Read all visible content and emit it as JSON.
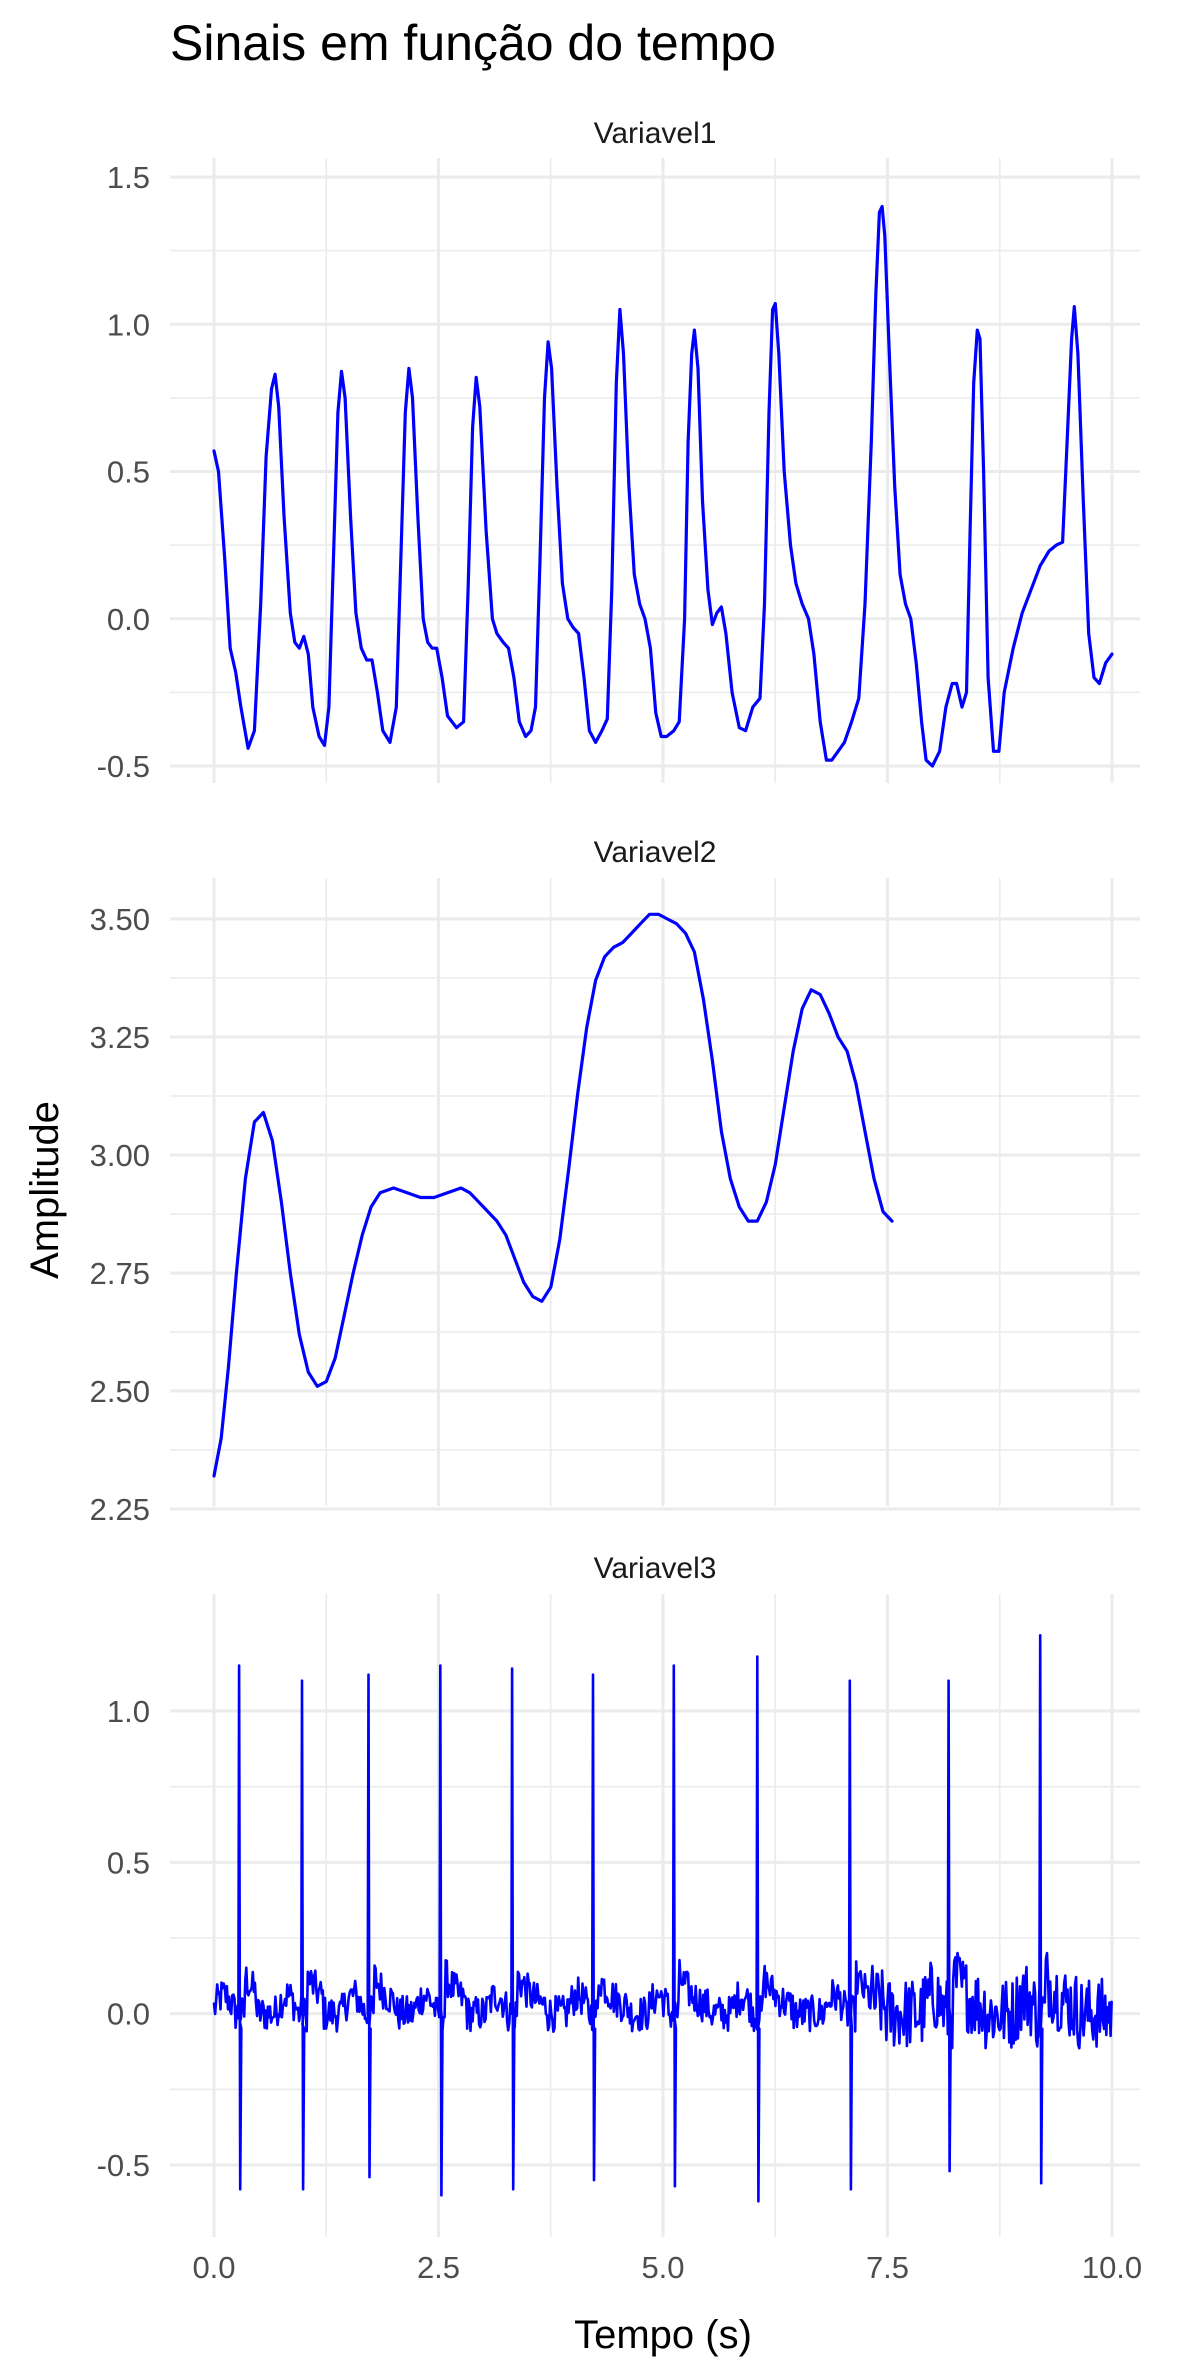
{
  "title": "Sinais em função do tempo",
  "xlabel": "Tempo (s)",
  "ylabel": "Amplitude",
  "x_ticks": [
    "0.0",
    "2.5",
    "5.0",
    "7.5",
    "10.0"
  ],
  "chart_data": {
    "type": "line",
    "title": "Sinais em função do tempo",
    "xlabel": "Tempo (s)",
    "ylabel": "Amplitude",
    "xlim": [
      0,
      10
    ],
    "x_ticks": [
      0,
      2.5,
      5,
      7.5,
      10
    ],
    "grid": true,
    "line_color": "#0000ff",
    "facets": [
      {
        "name": "Variavel1",
        "ylim": [
          -0.5,
          1.5
        ],
        "y_ticks": [
          -0.5,
          0,
          0.5,
          1.0,
          1.5
        ],
        "y_tick_labels": [
          "-0.5",
          "0.0",
          "0.5",
          "1.0",
          "1.5"
        ],
        "points": [
          [
            0,
            0.57
          ],
          [
            0.05,
            0.5
          ],
          [
            0.12,
            0.2
          ],
          [
            0.18,
            -0.1
          ],
          [
            0.24,
            -0.18
          ],
          [
            0.3,
            -0.3
          ],
          [
            0.38,
            -0.44
          ],
          [
            0.45,
            -0.38
          ],
          [
            0.52,
            0.05
          ],
          [
            0.58,
            0.55
          ],
          [
            0.64,
            0.78
          ],
          [
            0.68,
            0.83
          ],
          [
            0.72,
            0.72
          ],
          [
            0.78,
            0.35
          ],
          [
            0.85,
            0.02
          ],
          [
            0.9,
            -0.08
          ],
          [
            0.95,
            -0.1
          ],
          [
            1.0,
            -0.06
          ],
          [
            1.05,
            -0.12
          ],
          [
            1.1,
            -0.3
          ],
          [
            1.17,
            -0.4
          ],
          [
            1.23,
            -0.43
          ],
          [
            1.28,
            -0.3
          ],
          [
            1.33,
            0.2
          ],
          [
            1.38,
            0.7
          ],
          [
            1.42,
            0.84
          ],
          [
            1.46,
            0.75
          ],
          [
            1.52,
            0.35
          ],
          [
            1.58,
            0.02
          ],
          [
            1.64,
            -0.1
          ],
          [
            1.7,
            -0.14
          ],
          [
            1.76,
            -0.14
          ],
          [
            1.82,
            -0.25
          ],
          [
            1.88,
            -0.38
          ],
          [
            1.96,
            -0.42
          ],
          [
            2.03,
            -0.3
          ],
          [
            2.08,
            0.2
          ],
          [
            2.13,
            0.7
          ],
          [
            2.17,
            0.85
          ],
          [
            2.21,
            0.75
          ],
          [
            2.27,
            0.35
          ],
          [
            2.33,
            0.0
          ],
          [
            2.38,
            -0.08
          ],
          [
            2.43,
            -0.1
          ],
          [
            2.48,
            -0.1
          ],
          [
            2.54,
            -0.2
          ],
          [
            2.6,
            -0.33
          ],
          [
            2.7,
            -0.37
          ],
          [
            2.78,
            -0.35
          ],
          [
            2.83,
            0.1
          ],
          [
            2.88,
            0.65
          ],
          [
            2.92,
            0.82
          ],
          [
            2.96,
            0.72
          ],
          [
            3.03,
            0.3
          ],
          [
            3.1,
            0.0
          ],
          [
            3.15,
            -0.05
          ],
          [
            3.22,
            -0.08
          ],
          [
            3.28,
            -0.1
          ],
          [
            3.34,
            -0.2
          ],
          [
            3.4,
            -0.35
          ],
          [
            3.47,
            -0.4
          ],
          [
            3.53,
            -0.38
          ],
          [
            3.58,
            -0.3
          ],
          [
            3.63,
            0.2
          ],
          [
            3.68,
            0.75
          ],
          [
            3.72,
            0.94
          ],
          [
            3.76,
            0.85
          ],
          [
            3.82,
            0.45
          ],
          [
            3.88,
            0.12
          ],
          [
            3.94,
            0.0
          ],
          [
            4.0,
            -0.03
          ],
          [
            4.06,
            -0.05
          ],
          [
            4.12,
            -0.2
          ],
          [
            4.18,
            -0.38
          ],
          [
            4.25,
            -0.42
          ],
          [
            4.32,
            -0.38
          ],
          [
            4.38,
            -0.34
          ],
          [
            4.43,
            0.1
          ],
          [
            4.48,
            0.8
          ],
          [
            4.52,
            1.05
          ],
          [
            4.56,
            0.9
          ],
          [
            4.62,
            0.45
          ],
          [
            4.68,
            0.15
          ],
          [
            4.74,
            0.05
          ],
          [
            4.8,
            0.0
          ],
          [
            4.86,
            -0.1
          ],
          [
            4.92,
            -0.32
          ],
          [
            4.98,
            -0.4
          ],
          [
            5.04,
            -0.4
          ],
          [
            5.12,
            -0.38
          ],
          [
            5.18,
            -0.35
          ],
          [
            5.24,
            0.0
          ],
          [
            5.28,
            0.6
          ],
          [
            5.32,
            0.9
          ],
          [
            5.35,
            0.98
          ],
          [
            5.39,
            0.85
          ],
          [
            5.44,
            0.4
          ],
          [
            5.5,
            0.1
          ],
          [
            5.55,
            -0.02
          ],
          [
            5.6,
            0.02
          ],
          [
            5.65,
            0.04
          ],
          [
            5.7,
            -0.05
          ],
          [
            5.77,
            -0.25
          ],
          [
            5.85,
            -0.37
          ],
          [
            5.92,
            -0.38
          ],
          [
            6.0,
            -0.3
          ],
          [
            6.08,
            -0.27
          ],
          [
            6.13,
            0.05
          ],
          [
            6.18,
            0.7
          ],
          [
            6.22,
            1.05
          ],
          [
            6.25,
            1.07
          ],
          [
            6.29,
            0.9
          ],
          [
            6.35,
            0.5
          ],
          [
            6.42,
            0.25
          ],
          [
            6.48,
            0.12
          ],
          [
            6.55,
            0.05
          ],
          [
            6.62,
            0.0
          ],
          [
            6.68,
            -0.12
          ],
          [
            6.75,
            -0.35
          ],
          [
            6.82,
            -0.48
          ],
          [
            6.88,
            -0.48
          ],
          [
            6.95,
            -0.45
          ],
          [
            7.02,
            -0.42
          ],
          [
            7.1,
            -0.35
          ],
          [
            7.18,
            -0.27
          ],
          [
            7.25,
            0.05
          ],
          [
            7.32,
            0.6
          ],
          [
            7.37,
            1.1
          ],
          [
            7.41,
            1.38
          ],
          [
            7.44,
            1.4
          ],
          [
            7.47,
            1.3
          ],
          [
            7.52,
            0.9
          ],
          [
            7.58,
            0.45
          ],
          [
            7.64,
            0.15
          ],
          [
            7.7,
            0.05
          ],
          [
            7.76,
            0.0
          ],
          [
            7.82,
            -0.15
          ],
          [
            7.88,
            -0.35
          ],
          [
            7.93,
            -0.48
          ],
          [
            8.0,
            -0.5
          ],
          [
            8.08,
            -0.45
          ],
          [
            8.15,
            -0.3
          ],
          [
            8.22,
            -0.22
          ],
          [
            8.27,
            -0.22
          ],
          [
            8.33,
            -0.3
          ],
          [
            8.38,
            -0.25
          ],
          [
            8.42,
            0.3
          ],
          [
            8.46,
            0.8
          ],
          [
            8.5,
            0.98
          ],
          [
            8.53,
            0.95
          ],
          [
            8.57,
            0.5
          ],
          [
            8.62,
            -0.2
          ],
          [
            8.68,
            -0.45
          ],
          [
            8.74,
            -0.45
          ],
          [
            8.8,
            -0.25
          ],
          [
            8.9,
            -0.1
          ],
          [
            9.0,
            0.02
          ],
          [
            9.1,
            0.1
          ],
          [
            9.2,
            0.18
          ],
          [
            9.3,
            0.23
          ],
          [
            9.38,
            0.25
          ],
          [
            9.45,
            0.26
          ],
          [
            9.5,
            0.6
          ],
          [
            9.55,
            0.95
          ],
          [
            9.58,
            1.06
          ],
          [
            9.62,
            0.9
          ],
          [
            9.68,
            0.4
          ],
          [
            9.74,
            -0.05
          ],
          [
            9.8,
            -0.2
          ],
          [
            9.86,
            -0.22
          ],
          [
            9.93,
            -0.15
          ],
          [
            10,
            -0.12
          ]
        ]
      },
      {
        "name": "Variavel2",
        "ylim": [
          2.25,
          3.5
        ],
        "y_ticks": [
          2.25,
          2.5,
          2.75,
          3.0,
          3.25,
          3.5
        ],
        "y_tick_labels": [
          "2.25",
          "2.50",
          "2.75",
          "3.00",
          "3.25",
          "3.50"
        ],
        "points": [
          [
            0,
            2.32
          ],
          [
            0.08,
            2.4
          ],
          [
            0.16,
            2.55
          ],
          [
            0.25,
            2.75
          ],
          [
            0.35,
            2.95
          ],
          [
            0.45,
            3.07
          ],
          [
            0.55,
            3.09
          ],
          [
            0.65,
            3.03
          ],
          [
            0.75,
            2.9
          ],
          [
            0.85,
            2.75
          ],
          [
            0.95,
            2.62
          ],
          [
            1.05,
            2.54
          ],
          [
            1.15,
            2.51
          ],
          [
            1.25,
            2.52
          ],
          [
            1.35,
            2.57
          ],
          [
            1.45,
            2.66
          ],
          [
            1.55,
            2.75
          ],
          [
            1.65,
            2.83
          ],
          [
            1.75,
            2.89
          ],
          [
            1.85,
            2.92
          ],
          [
            2.0,
            2.93
          ],
          [
            2.15,
            2.92
          ],
          [
            2.3,
            2.91
          ],
          [
            2.45,
            2.91
          ],
          [
            2.6,
            2.92
          ],
          [
            2.75,
            2.93
          ],
          [
            2.85,
            2.92
          ],
          [
            2.95,
            2.9
          ],
          [
            3.05,
            2.88
          ],
          [
            3.15,
            2.86
          ],
          [
            3.25,
            2.83
          ],
          [
            3.35,
            2.78
          ],
          [
            3.45,
            2.73
          ],
          [
            3.55,
            2.7
          ],
          [
            3.65,
            2.69
          ],
          [
            3.75,
            2.72
          ],
          [
            3.85,
            2.82
          ],
          [
            3.95,
            2.97
          ],
          [
            4.05,
            3.13
          ],
          [
            4.15,
            3.27
          ],
          [
            4.25,
            3.37
          ],
          [
            4.35,
            3.42
          ],
          [
            4.45,
            3.44
          ],
          [
            4.55,
            3.45
          ],
          [
            4.65,
            3.47
          ],
          [
            4.75,
            3.49
          ],
          [
            4.85,
            3.51
          ],
          [
            4.95,
            3.51
          ],
          [
            5.05,
            3.5
          ],
          [
            5.15,
            3.49
          ],
          [
            5.25,
            3.47
          ],
          [
            5.35,
            3.43
          ],
          [
            5.45,
            3.33
          ],
          [
            5.55,
            3.2
          ],
          [
            5.65,
            3.05
          ],
          [
            5.75,
            2.95
          ],
          [
            5.85,
            2.89
          ],
          [
            5.95,
            2.86
          ],
          [
            6.05,
            2.86
          ],
          [
            6.15,
            2.9
          ],
          [
            6.25,
            2.98
          ],
          [
            6.35,
            3.1
          ],
          [
            6.45,
            3.22
          ],
          [
            6.55,
            3.31
          ],
          [
            6.65,
            3.35
          ],
          [
            6.75,
            3.34
          ],
          [
            6.85,
            3.3
          ],
          [
            6.95,
            3.25
          ],
          [
            7.05,
            3.22
          ],
          [
            7.15,
            3.15
          ],
          [
            7.25,
            3.05
          ],
          [
            7.35,
            2.95
          ],
          [
            7.45,
            2.88
          ],
          [
            7.55,
            2.86
          ]
        ]
      },
      {
        "name": "Variavel3",
        "ylim": [
          -0.5,
          1.0
        ],
        "y_ticks": [
          -0.5,
          0,
          0.5,
          1.0
        ],
        "y_tick_labels": [
          "-0.5",
          "0.0",
          "0.5",
          "1.0"
        ],
        "spike_times": [
          0.28,
          0.98,
          1.72,
          2.52,
          3.32,
          4.22,
          5.12,
          6.05,
          7.08,
          8.18,
          9.2
        ],
        "spike_peaks": [
          1.15,
          1.1,
          1.12,
          1.15,
          1.14,
          1.12,
          1.15,
          1.18,
          1.1,
          1.1,
          1.25
        ],
        "spike_troughs": [
          -0.58,
          -0.58,
          -0.54,
          -0.6,
          -0.58,
          -0.55,
          -0.57,
          -0.62,
          -0.58,
          -0.52,
          -0.56
        ],
        "baseline_range": [
          -0.2,
          0.2
        ]
      }
    ]
  }
}
